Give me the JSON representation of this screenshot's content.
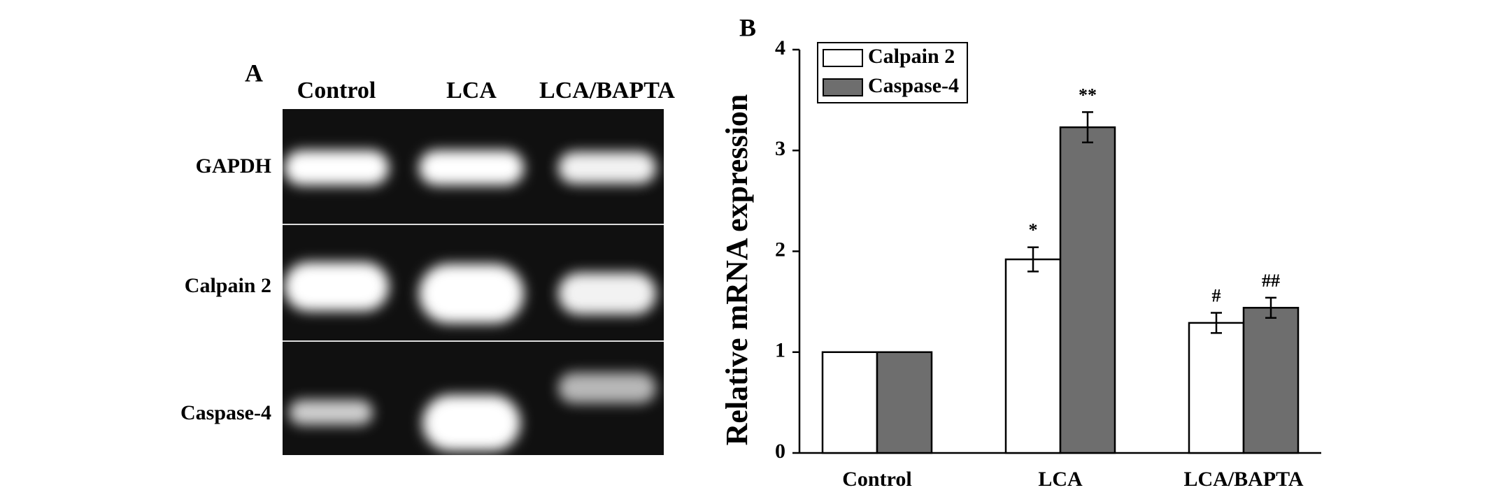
{
  "panel_a": {
    "label": "A",
    "lanes": [
      "Control",
      "LCA",
      "LCA/BAPTA"
    ],
    "rows": [
      "GAPDH",
      "Calpain 2",
      "Caspase-4"
    ]
  },
  "chart_data": {
    "type": "bar",
    "label": "B",
    "y_label": "Relative  mRNA expression",
    "categories": [
      "Control",
      "LCA",
      "LCA/BAPTA"
    ],
    "series": [
      {
        "name": "Calpain 2",
        "color": "#ffffff",
        "values": [
          1,
          1.92,
          1.29
        ],
        "errors": [
          0,
          0.12,
          0.1
        ],
        "annotations": [
          null,
          "*",
          "#"
        ]
      },
      {
        "name": "Caspase-4",
        "color": "#6e6e6e",
        "values": [
          1,
          3.23,
          1.44
        ],
        "errors": [
          0,
          0.15,
          0.1
        ],
        "annotations": [
          null,
          "**",
          "##"
        ]
      }
    ],
    "ylim": [
      0,
      4
    ],
    "yticks": [
      0,
      1,
      2,
      3,
      4
    ],
    "legend": "upper left"
  }
}
